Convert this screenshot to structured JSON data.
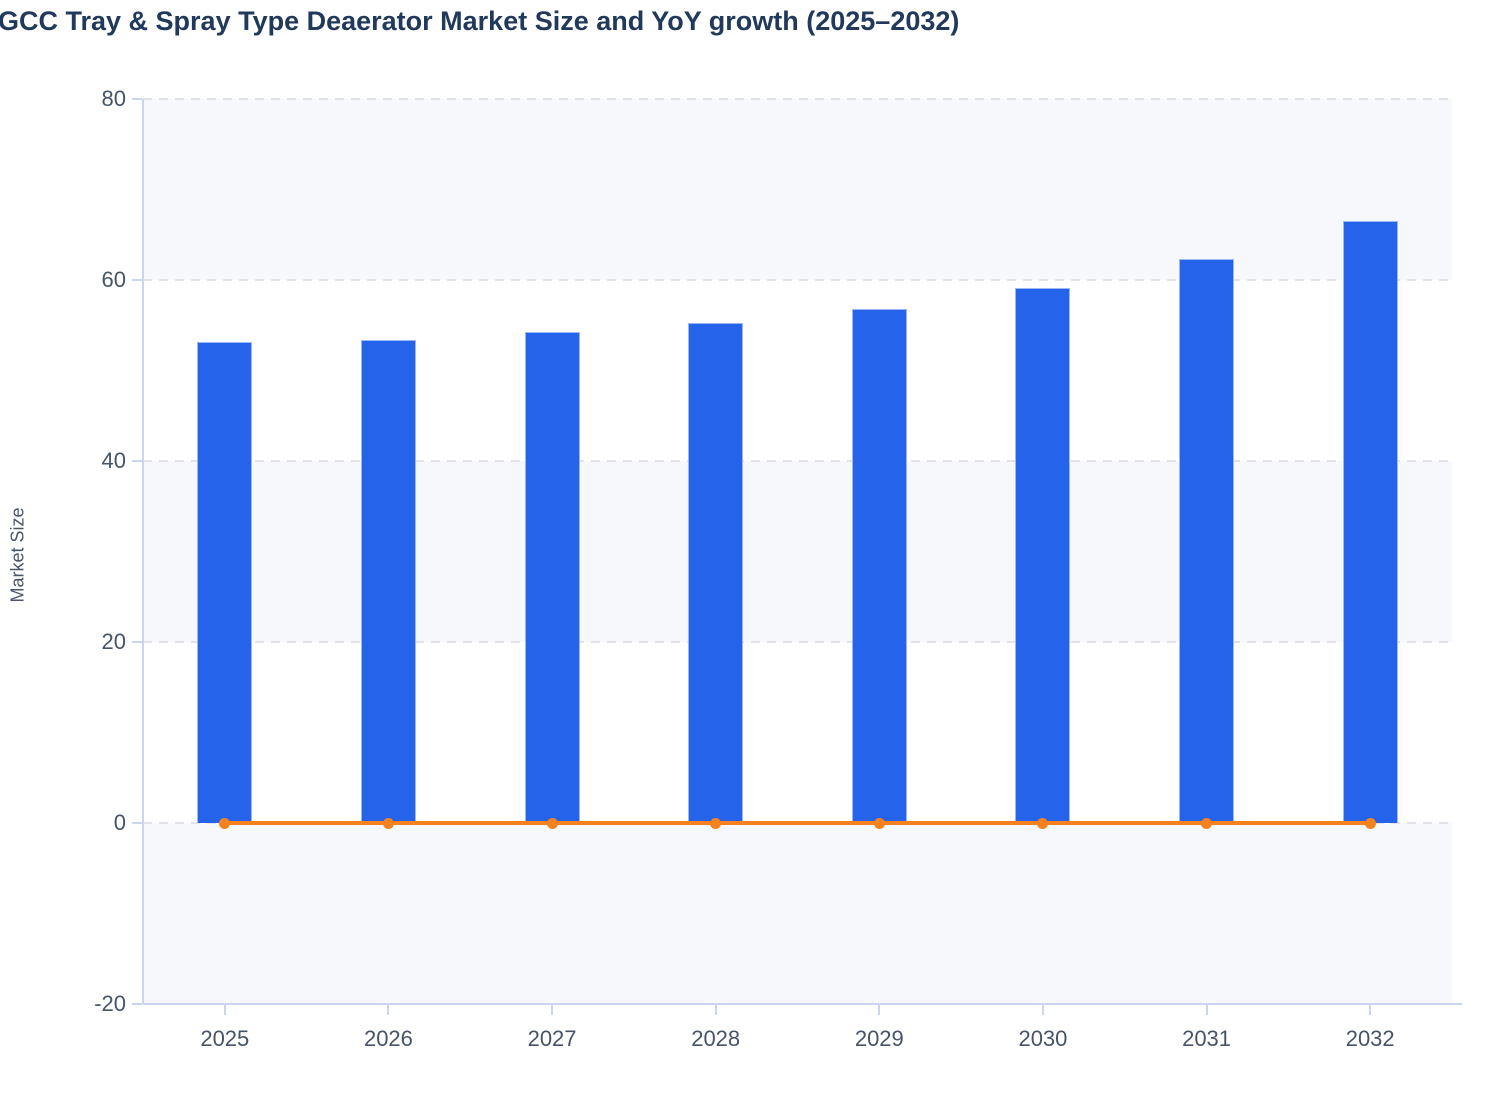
{
  "chart_data": {
    "type": "bar",
    "title": "GCC Tray & Spray Type Deaerator Market Size and YoY growth (2025–2032)",
    "ylabel": "Market Size",
    "xlabel": "",
    "categories": [
      "2025",
      "2026",
      "2027",
      "2028",
      "2029",
      "2030",
      "2031",
      "2032"
    ],
    "series": [
      {
        "name": "Market Size",
        "type": "bar",
        "color": "#2563eb",
        "edge_color": "#9cb8f3",
        "values": [
          53.2,
          53.4,
          54.2,
          55.2,
          56.8,
          59.1,
          62.3,
          66.5
        ]
      },
      {
        "name": "YoY growth",
        "type": "line",
        "color": "#f5821f",
        "values": [
          0,
          0,
          0,
          0,
          0,
          0,
          0,
          0
        ]
      }
    ],
    "ylim": [
      -20,
      80
    ],
    "yticks": [
      80,
      60,
      40,
      20,
      0,
      -20
    ],
    "grid": "horizontal-dashed",
    "legend": "none",
    "band_fill": "#f7f8fb",
    "grid_color": "#e2e3e9",
    "axis_color": "#ccd5f0",
    "tick_label_color": "#475467",
    "title_color": "#21395a",
    "background": "#ffffff"
  }
}
